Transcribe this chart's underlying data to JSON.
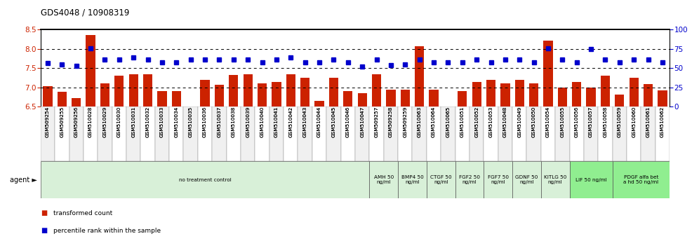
{
  "title": "GDS4048 / 10908319",
  "samples": [
    "GSM509254",
    "GSM509255",
    "GSM509256",
    "GSM510028",
    "GSM510029",
    "GSM510030",
    "GSM510031",
    "GSM510032",
    "GSM510033",
    "GSM510034",
    "GSM510035",
    "GSM510036",
    "GSM510037",
    "GSM510038",
    "GSM510039",
    "GSM510040",
    "GSM510041",
    "GSM510042",
    "GSM510043",
    "GSM510044",
    "GSM510045",
    "GSM510046",
    "GSM510047",
    "GSM509257",
    "GSM509258",
    "GSM509259",
    "GSM510063",
    "GSM510064",
    "GSM510065",
    "GSM510051",
    "GSM510052",
    "GSM510053",
    "GSM510048",
    "GSM510049",
    "GSM510050",
    "GSM510054",
    "GSM510055",
    "GSM510056",
    "GSM510057",
    "GSM510058",
    "GSM510059",
    "GSM510060",
    "GSM510061",
    "GSM510062"
  ],
  "bar_values": [
    7.04,
    6.88,
    6.72,
    8.37,
    7.1,
    7.3,
    7.35,
    7.35,
    6.9,
    6.9,
    6.5,
    7.2,
    7.07,
    7.32,
    7.35,
    7.1,
    7.15,
    7.35,
    7.25,
    6.65,
    7.25,
    6.9,
    6.85,
    7.35,
    6.95,
    6.95,
    8.08,
    6.95,
    6.5,
    6.9,
    7.15,
    7.2,
    7.1,
    7.2,
    7.1,
    8.22,
    7.0,
    7.15,
    7.0,
    7.3,
    6.82,
    7.25,
    7.08,
    6.93
  ],
  "dot_values": [
    7.63,
    7.6,
    7.57,
    8.02,
    7.73,
    7.73,
    7.78,
    7.73,
    7.65,
    7.65,
    7.73,
    7.73,
    7.73,
    7.73,
    7.73,
    7.65,
    7.72,
    7.78,
    7.65,
    7.65,
    7.72,
    7.65,
    7.55,
    7.72,
    7.58,
    7.6,
    7.72,
    7.65,
    7.65,
    7.65,
    7.72,
    7.65,
    7.72,
    7.72,
    7.65,
    8.02,
    7.72,
    7.65,
    8.0,
    7.72,
    7.65,
    7.72,
    7.73,
    7.65
  ],
  "bar_color": "#cc2200",
  "dot_color": "#0000cc",
  "ylim_left": [
    6.5,
    8.5
  ],
  "ylim_right": [
    0,
    100
  ],
  "yticks_left": [
    6.5,
    7.0,
    7.5,
    8.0,
    8.5
  ],
  "yticks_right": [
    0,
    25,
    50,
    75,
    100
  ],
  "hlines": [
    7.0,
    7.5,
    8.0
  ],
  "agent_groups": [
    {
      "label": "no treatment control",
      "start": 0,
      "end": 23,
      "color": "#d8f0d8"
    },
    {
      "label": "AMH 50\nng/ml",
      "start": 23,
      "end": 25,
      "color": "#d8f0d8"
    },
    {
      "label": "BMP4 50\nng/ml",
      "start": 25,
      "end": 27,
      "color": "#d8f0d8"
    },
    {
      "label": "CTGF 50\nng/ml",
      "start": 27,
      "end": 29,
      "color": "#d8f0d8"
    },
    {
      "label": "FGF2 50\nng/ml",
      "start": 29,
      "end": 31,
      "color": "#d8f0d8"
    },
    {
      "label": "FGF7 50\nng/ml",
      "start": 31,
      "end": 33,
      "color": "#d8f0d8"
    },
    {
      "label": "GDNF 50\nng/ml",
      "start": 33,
      "end": 35,
      "color": "#d8f0d8"
    },
    {
      "label": "KITLG 50\nng/ml",
      "start": 35,
      "end": 37,
      "color": "#d8f0d8"
    },
    {
      "label": "LIF 50 ng/ml",
      "start": 37,
      "end": 40,
      "color": "#90ee90"
    },
    {
      "label": "PDGF alfa bet\na hd 50 ng/ml",
      "start": 40,
      "end": 44,
      "color": "#90ee90"
    }
  ]
}
